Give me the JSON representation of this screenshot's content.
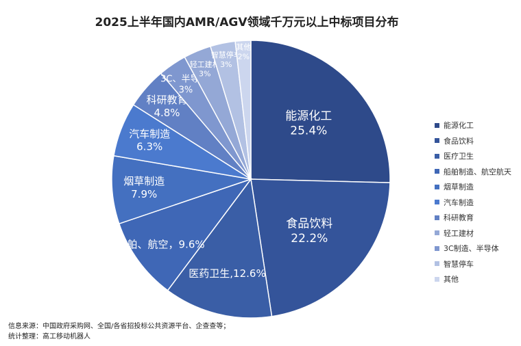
{
  "chart_data": {
    "type": "pie",
    "title": "2025上半年国内AMR/AGV领域千万元以上中标项目分布",
    "slices": [
      {
        "name": "能源化工",
        "value": 25.4,
        "label_lines": [
          "能源化工",
          "25.4%"
        ],
        "color": "#2e4a8a",
        "label_color": "#ffffff"
      },
      {
        "name": "食品饮料",
        "value": 22.2,
        "label_lines": [
          "食品饮料",
          "22.2%"
        ],
        "color": "#34549a",
        "label_color": "#ffffff"
      },
      {
        "name": "医疗卫生",
        "value": 12.6,
        "label_lines": [
          "医药卫生,12.6%"
        ],
        "color": "#3a5ea6",
        "label_color": "#ffffff"
      },
      {
        "name": "船舶制造、航空航天",
        "value": 9.6,
        "label_lines": [
          "船舶、航空，9.6%"
        ],
        "color": "#3f67b6",
        "label_color": "#ffffff"
      },
      {
        "name": "烟草制造",
        "value": 7.9,
        "label_lines": [
          "烟草制造",
          "7.9%"
        ],
        "color": "#4470c0",
        "label_color": "#ffffff"
      },
      {
        "name": "汽车制造",
        "value": 6.3,
        "label_lines": [
          "汽车制造",
          "6.3%"
        ],
        "color": "#4b7ace",
        "label_color": "#ffffff"
      },
      {
        "name": "科研教育",
        "value": 4.8,
        "label_lines": [
          "科研教育",
          "4.8%"
        ],
        "color": "#6180c4",
        "label_color": "#ffffff"
      },
      {
        "name": "3C制造、半导体",
        "value": 3.3,
        "label_lines": [
          "3C、半导体,",
          "3%"
        ],
        "color": "#7f97cf",
        "label_color": "#ffffff"
      },
      {
        "name": "轻工建材",
        "value": 3.2,
        "label_lines": [
          "轻工建材",
          "3%"
        ],
        "color": "#94a8d6",
        "label_color": "#ffffff"
      },
      {
        "name": "智慧停车",
        "value": 2.9,
        "label_lines": [
          "智慧停车",
          "3%"
        ],
        "color": "#b2c1e3",
        "label_color": "#ffffff"
      },
      {
        "name": "其他",
        "value": 1.8,
        "label_lines": [
          "其他",
          "2%"
        ],
        "color": "#ccd6ee",
        "label_color": "#ffffff"
      }
    ],
    "legend_position": "right",
    "legend": [
      "能源化工",
      "食品饮料",
      "医疗卫生",
      "船舶制造、航空航天",
      "烟草制造",
      "汽车制造",
      "科研教育",
      "轻工建材",
      "3C制造、半导体",
      "智慧停车",
      "其他"
    ],
    "legend_colors": [
      "#2e4a8a",
      "#34549a",
      "#3a5ea6",
      "#3f67b6",
      "#4470c0",
      "#4b7ace",
      "#6180c4",
      "#94a8d6",
      "#7f97cf",
      "#b2c1e3",
      "#ccd6ee"
    ]
  },
  "source": {
    "line1": "信息来源：中国政府采购网、全国/各省招投标公共资源平台、企查查等；",
    "line2": "统计整理：高工移动机器人"
  }
}
